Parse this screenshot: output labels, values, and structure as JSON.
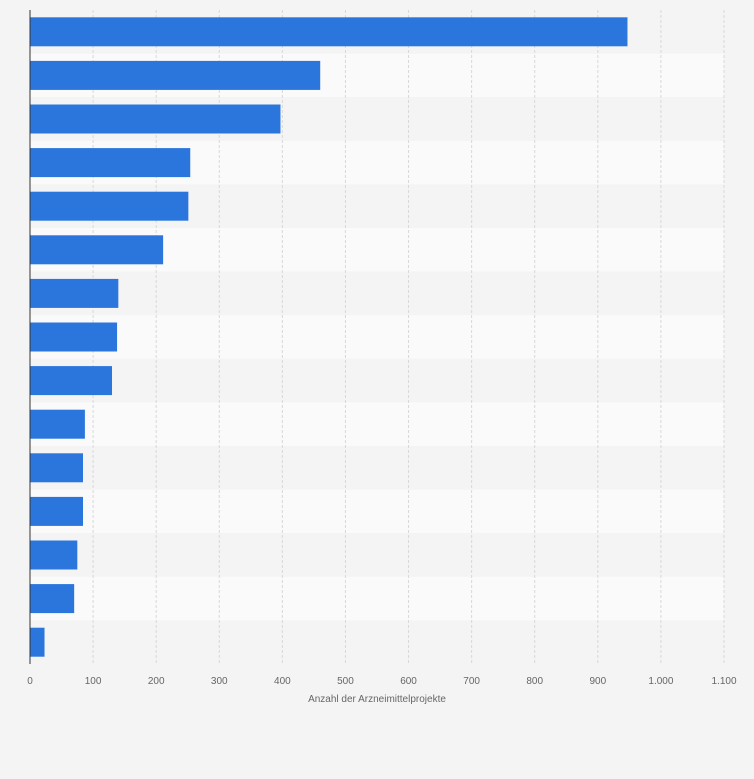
{
  "chart_data": {
    "type": "bar",
    "orientation": "horizontal",
    "title": "",
    "xlabel": "Anzahl der Arzneimittelprojekte",
    "ylabel": "",
    "xlim": [
      0,
      1100
    ],
    "x_ticks": [
      0,
      100,
      200,
      300,
      400,
      500,
      600,
      700,
      800,
      900,
      1000,
      1100
    ],
    "x_tick_labels": [
      "0",
      "100",
      "200",
      "300",
      "400",
      "500",
      "600",
      "700",
      "800",
      "900",
      "1.000",
      "1.100"
    ],
    "grid": true,
    "categories": [
      "",
      "",
      "",
      "",
      "",
      "",
      "",
      "",
      "",
      "",
      "",
      "",
      "",
      "",
      ""
    ],
    "values": [
      947,
      460,
      397,
      254,
      251,
      211,
      140,
      138,
      130,
      87,
      84,
      84,
      75,
      70,
      23
    ],
    "bar_color": "#2a76dd",
    "band_colors": [
      "#f4f4f4",
      "#fafafa"
    ],
    "grid_color": "#d8d8d8",
    "axis_color": "#333333",
    "text_color": "#666666",
    "background": "#f4f4f4"
  }
}
